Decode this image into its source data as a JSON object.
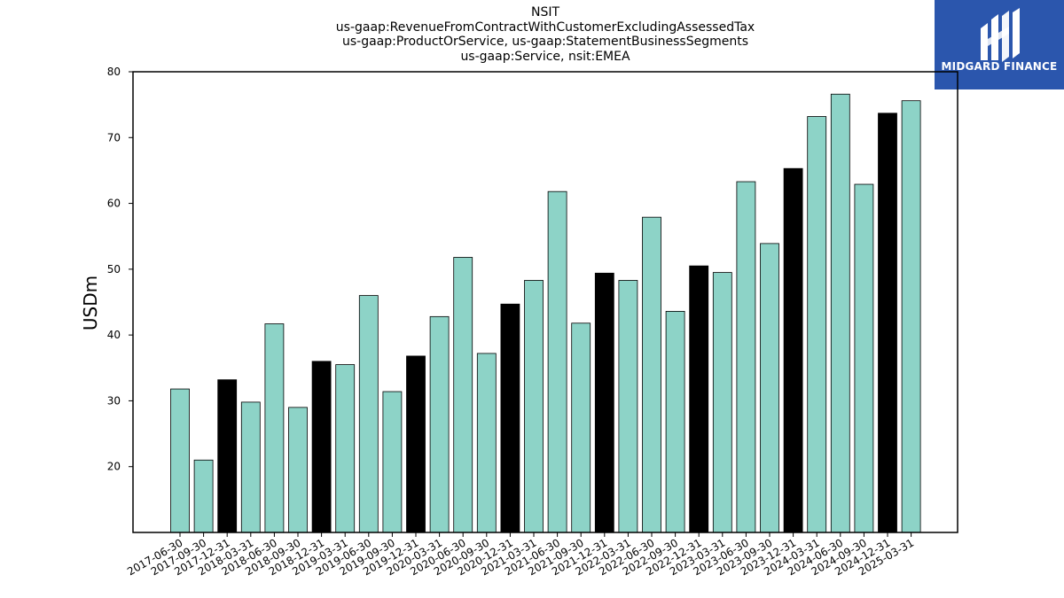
{
  "brand": {
    "name": "MIDGARD FINANCE",
    "bg_color": "#2b56ad",
    "text_color": "#ffffff"
  },
  "chart_data": {
    "type": "bar",
    "title_lines": [
      "NSIT",
      "us-gaap:RevenueFromContractWithCustomerExcludingAssessedTax",
      "us-gaap:ProductOrService, us-gaap:StatementBusinessSegments",
      "us-gaap:Service, nsit:EMEA"
    ],
    "ylabel": "USDm",
    "xlabel": "",
    "ylim": [
      10,
      80
    ],
    "yticks": [
      20,
      30,
      40,
      50,
      60,
      70,
      80
    ],
    "grid": false,
    "colors": {
      "quarter": "#8dd3c7",
      "year_end": "#000000",
      "edge": "#000000"
    },
    "categories": [
      "2017-06-30",
      "2017-09-30",
      "2017-12-31",
      "2018-03-31",
      "2018-06-30",
      "2018-09-30",
      "2018-12-31",
      "2019-03-31",
      "2019-06-30",
      "2019-09-30",
      "2019-12-31",
      "2020-03-31",
      "2020-06-30",
      "2020-09-30",
      "2020-12-31",
      "2021-03-31",
      "2021-06-30",
      "2021-09-30",
      "2021-12-31",
      "2022-03-31",
      "2022-06-30",
      "2022-09-30",
      "2022-12-31",
      "2023-03-31",
      "2023-06-30",
      "2023-09-30",
      "2023-12-31",
      "2024-03-31",
      "2024-06-30",
      "2024-09-30",
      "2024-12-31",
      "2025-03-31"
    ],
    "values": [
      31.8,
      21.0,
      33.2,
      29.8,
      41.7,
      29.0,
      36.0,
      35.5,
      46.0,
      31.4,
      36.8,
      42.8,
      51.8,
      37.2,
      44.7,
      48.3,
      61.8,
      41.8,
      49.4,
      48.3,
      57.9,
      43.6,
      50.5,
      49.5,
      63.3,
      53.9,
      65.3,
      73.2,
      76.6,
      62.9,
      73.7,
      75.6
    ],
    "year_end_flags": [
      false,
      false,
      true,
      false,
      false,
      false,
      true,
      false,
      false,
      false,
      true,
      false,
      false,
      false,
      true,
      false,
      false,
      false,
      true,
      false,
      false,
      false,
      true,
      false,
      false,
      false,
      true,
      false,
      false,
      false,
      true,
      false
    ]
  }
}
